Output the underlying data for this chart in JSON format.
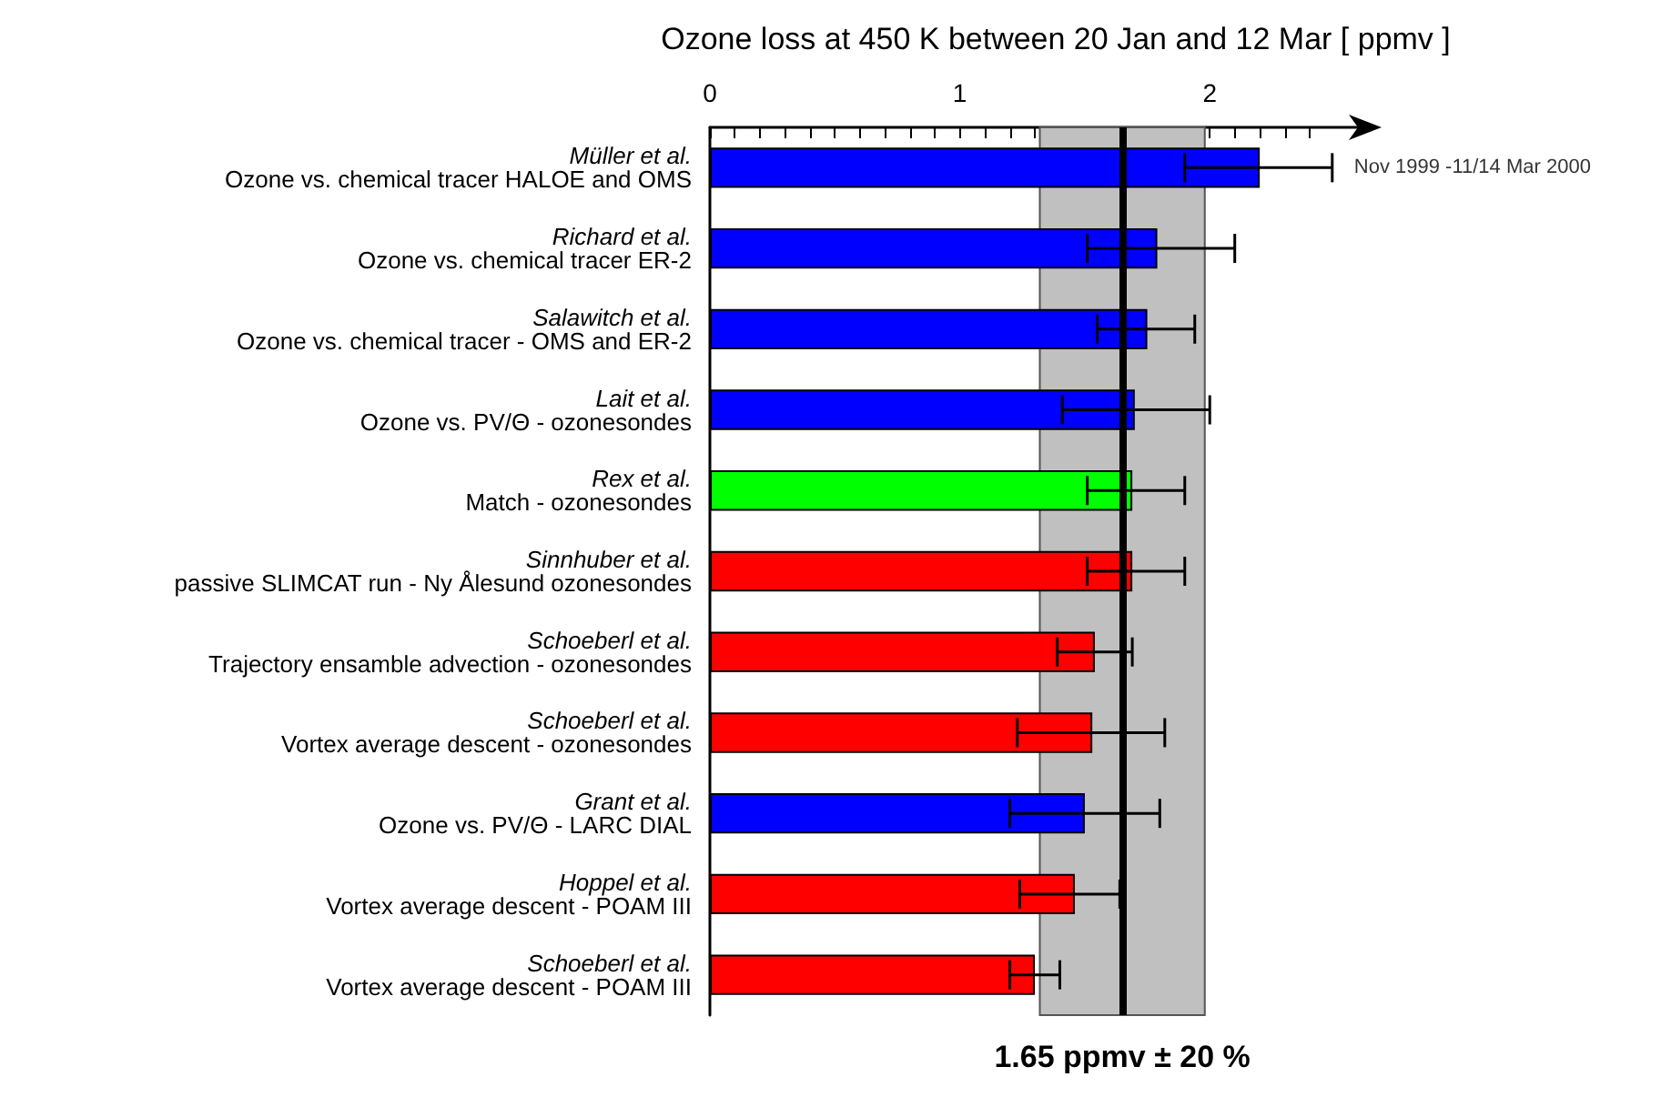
{
  "chart_data": {
    "type": "bar",
    "orientation": "horizontal",
    "title": "Ozone loss at 450 K between 20 Jan and 12 Mar [ ppmv ]",
    "categories": [
      "Müller et al.\nOzone vs. chemical tracer HALOE and OMS",
      "Richard et al.\nOzone vs. chemical tracer ER-2",
      "Salawitch et al.\nOzone vs. chemical tracer - OMS and ER-2",
      "Lait et al.\nOzone vs. PV/Θ - ozonesondes",
      "Rex et al.\nMatch - ozonesondes",
      "Sinnhuber et al.\npassive SLIMCAT run - Ny Ålesund ozonesondes",
      "Schoeberl et al.\nTrajectory ensamble advection - ozonesondes",
      "Schoeberl et al.\nVortex average descent - ozonesondes",
      "Grant et al.\nOzone vs. PV/Θ - LARC DIAL",
      "Hoppel et al.\nVortex average descent - POAM III",
      "Schoeberl et al.\nVortex average descent - POAM III"
    ],
    "values": [
      2.2,
      1.79,
      1.75,
      1.7,
      1.69,
      1.69,
      1.54,
      1.53,
      1.5,
      1.46,
      1.3
    ],
    "colors": [
      "#0000ff",
      "#0000ff",
      "#0000ff",
      "#0000ff",
      "#00ff00",
      "#ff0000",
      "#ff0000",
      "#ff0000",
      "#0000ff",
      "#ff0000",
      "#ff0000"
    ],
    "errors": [
      [
        1.9,
        2.49
      ],
      [
        1.51,
        2.1
      ],
      [
        1.55,
        1.94
      ],
      [
        1.41,
        2.0
      ],
      [
        1.51,
        1.9
      ],
      [
        1.51,
        1.9
      ],
      [
        1.39,
        1.69
      ],
      [
        1.23,
        1.82
      ],
      [
        1.2,
        1.8
      ],
      [
        1.24,
        1.64
      ],
      [
        1.2,
        1.4
      ]
    ],
    "xlim": [
      0,
      2.6
    ],
    "xticks": [
      0,
      {
        "value": 0.1,
        "label": null
      },
      {
        "value": 0.2,
        "label": null
      },
      {
        "value": 0.3,
        "label": null
      },
      {
        "value": 0.4,
        "label": null
      },
      {
        "value": 0.5,
        "label": null
      },
      {
        "value": 0.6,
        "label": null
      },
      {
        "value": 0.7,
        "label": null
      },
      {
        "value": 0.8,
        "label": null
      },
      {
        "value": 0.9,
        "label": null
      },
      1,
      {
        "value": 1.1,
        "label": null
      },
      {
        "value": 1.2,
        "label": null
      },
      {
        "value": 1.3,
        "label": null
      },
      {
        "value": 1.4,
        "label": null
      },
      {
        "value": 1.5,
        "label": null
      },
      {
        "value": 1.6,
        "label": null
      },
      {
        "value": 1.7,
        "label": null
      },
      {
        "value": 1.8,
        "label": null
      },
      {
        "value": 1.9,
        "label": null
      },
      2,
      {
        "value": 2.1,
        "label": null
      },
      {
        "value": 2.2,
        "label": null
      },
      {
        "value": 2.3,
        "label": null
      },
      {
        "value": 2.4,
        "label": null
      }
    ],
    "ref_lines": [
      {
        "axis": "x",
        "value": 1.65,
        "color": "#000000"
      }
    ],
    "bands": [
      {
        "axis": "x",
        "from": 1.32,
        "to": 1.98,
        "label": "1.65 ppmv ± 20 %",
        "color": "#c0c0c0"
      }
    ],
    "annotations": [
      {
        "text": "Nov 1999 -11/14 Mar 2000",
        "x": 2.49,
        "y": "Müller et al.\nOzone vs. chemical tracer HALOE and OMS"
      }
    ]
  }
}
